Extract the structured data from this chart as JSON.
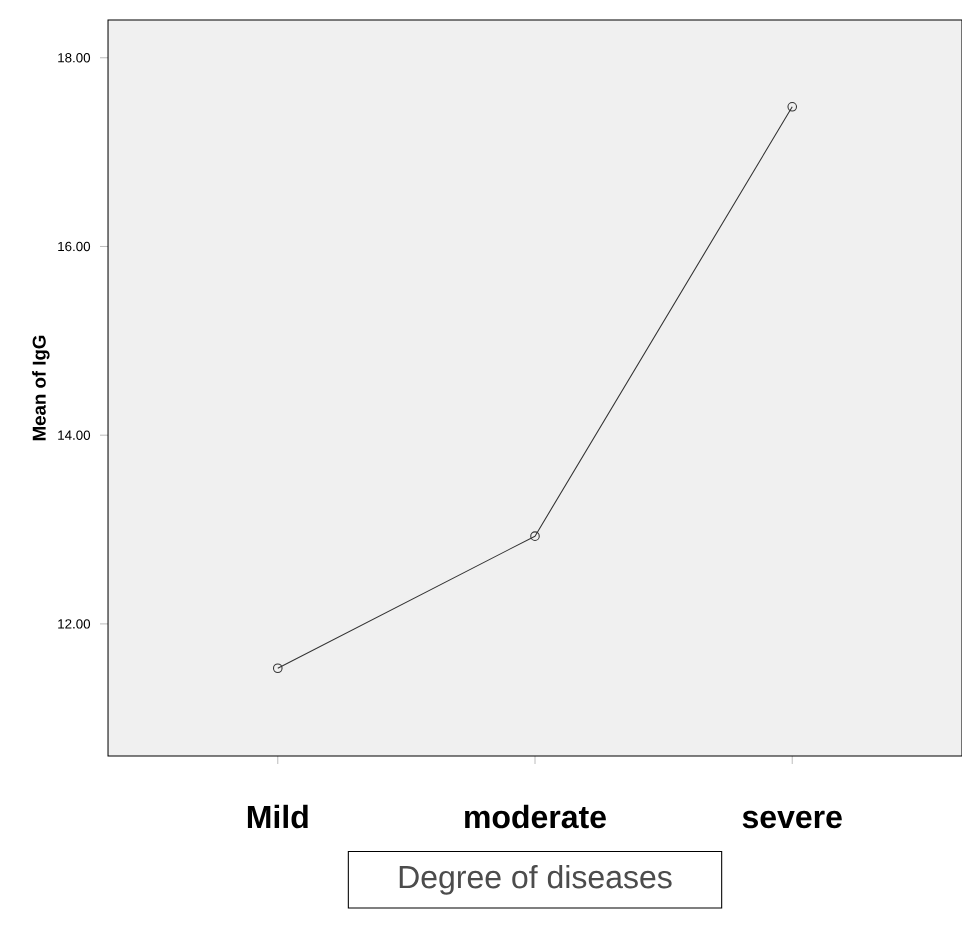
{
  "chart_data": {
    "type": "line",
    "ylabel": "Mean of IgG",
    "xlabel": "Degree of diseases",
    "categories": [
      "Mild",
      "moderate",
      "severe"
    ],
    "series": [
      {
        "color": "#333333",
        "values": [
          11.53,
          12.93,
          17.48
        ]
      }
    ],
    "ylim": [
      10.6,
      18.4
    ],
    "yticks": [
      {
        "value": 12,
        "label": "12.00"
      },
      {
        "value": 14,
        "label": "14.00"
      },
      {
        "value": 16,
        "label": "16.00"
      },
      {
        "value": 18,
        "label": "18.00"
      }
    ],
    "marker": "circle"
  }
}
